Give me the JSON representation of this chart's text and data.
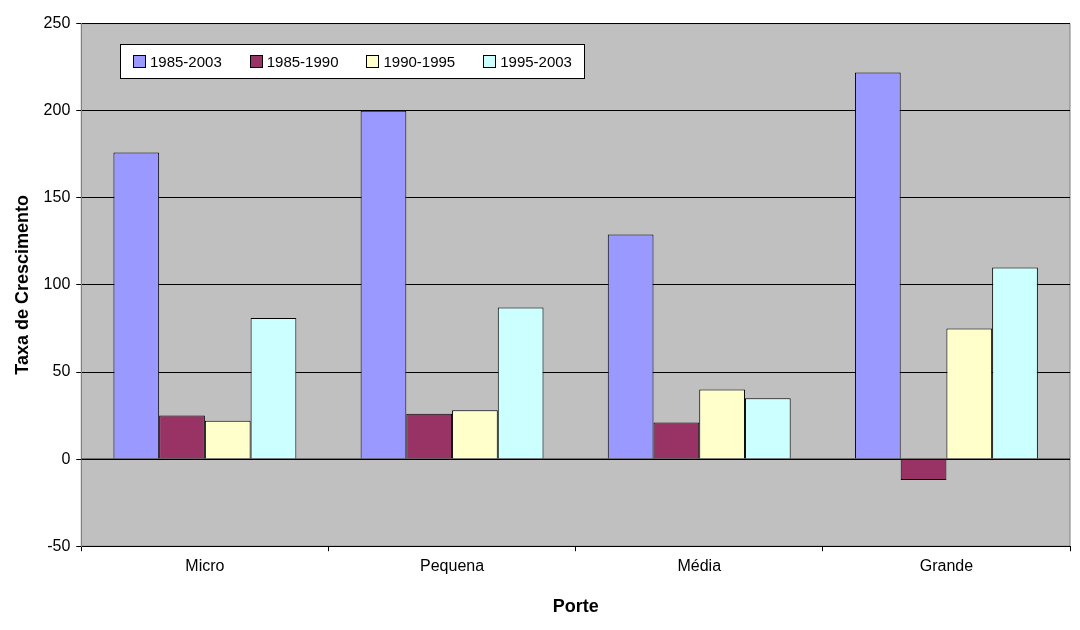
{
  "chart_data": {
    "type": "bar",
    "xlabel": "Porte",
    "ylabel": "Taxa de Crescimento",
    "categories": [
      "Micro",
      "Pequena",
      "Média",
      "Grande"
    ],
    "series": [
      {
        "name": "1985-2003",
        "color": "#9999ff",
        "values": [
          176,
          200,
          129,
          222
        ]
      },
      {
        "name": "1985-1990",
        "color": "#993366",
        "values": [
          25,
          26,
          21,
          -12
        ]
      },
      {
        "name": "1990-1995",
        "color": "#ffffcc",
        "values": [
          22,
          28,
          40,
          75
        ]
      },
      {
        "name": "1995-2003",
        "color": "#ccffff",
        "values": [
          81,
          87,
          35,
          110
        ]
      }
    ],
    "ylim": [
      -50,
      250
    ],
    "yticks": [
      -50,
      0,
      50,
      100,
      150,
      200,
      250
    ],
    "grid": "y",
    "legend": "top left"
  }
}
